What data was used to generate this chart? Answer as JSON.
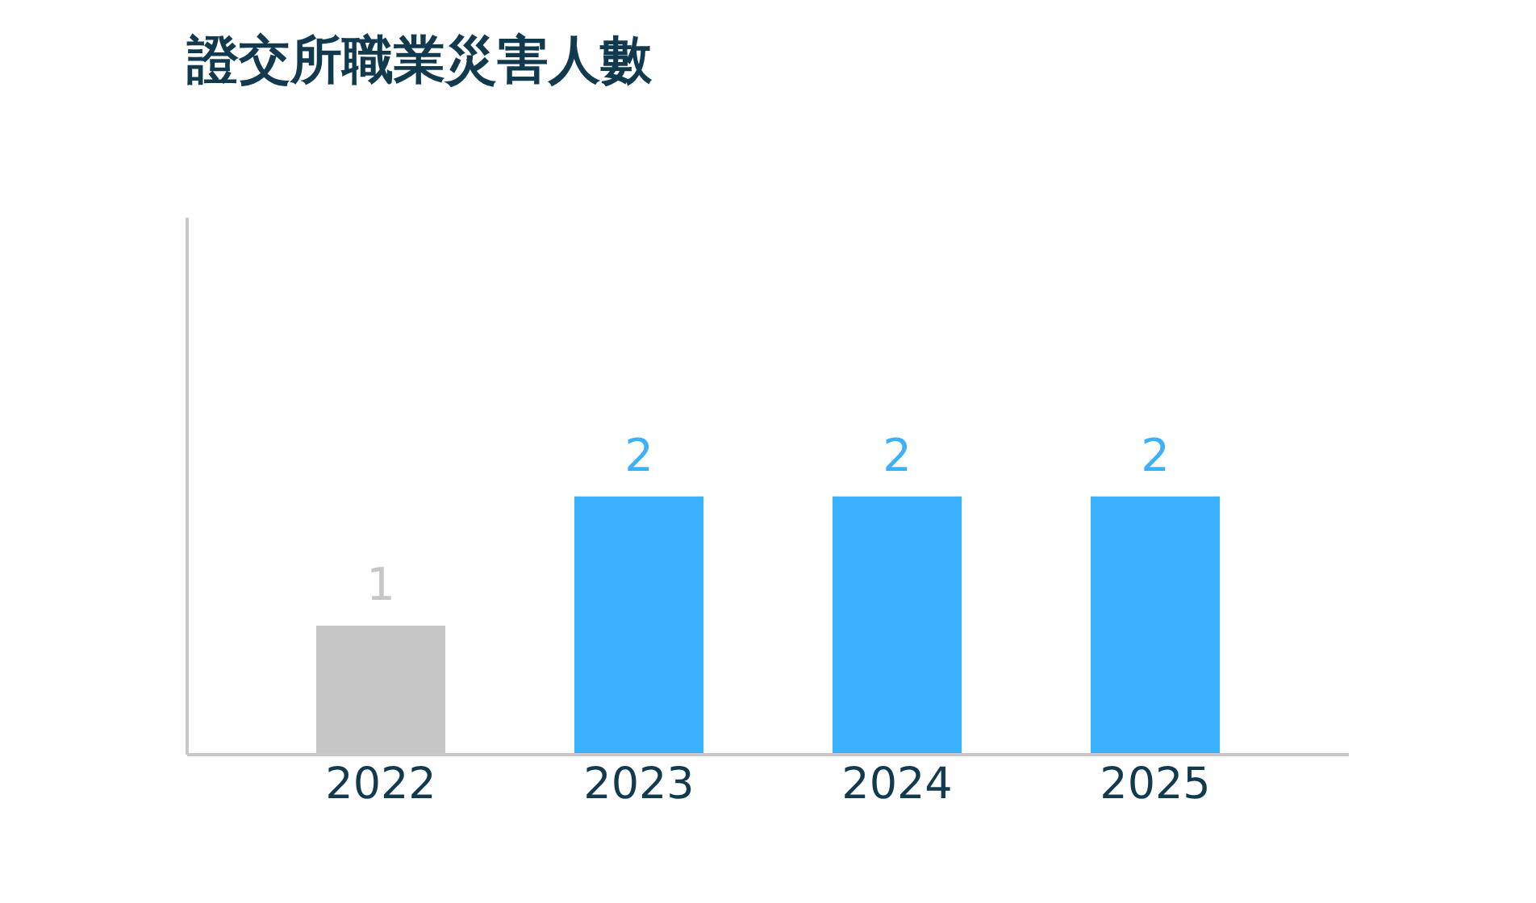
{
  "chart_data": {
    "type": "bar",
    "title": "證交所職業災害人數",
    "categories": [
      "2022",
      "2023",
      "2024",
      "2025"
    ],
    "values": [
      1,
      2,
      2,
      2
    ],
    "colors": [
      "#c6c6c6",
      "#3bb0ff",
      "#3bb0ff",
      "#3bb0ff"
    ],
    "data_labels": true,
    "tick_labels": "x"
  }
}
